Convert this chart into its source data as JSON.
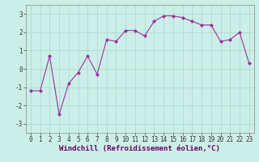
{
  "x": [
    0,
    1,
    2,
    3,
    4,
    5,
    6,
    7,
    8,
    9,
    10,
    11,
    12,
    13,
    14,
    15,
    16,
    17,
    18,
    19,
    20,
    21,
    22,
    23
  ],
  "y": [
    -1.2,
    -1.2,
    0.7,
    -2.5,
    -0.8,
    -0.2,
    0.7,
    -0.3,
    1.6,
    1.5,
    2.1,
    2.1,
    1.8,
    2.6,
    2.9,
    2.9,
    2.8,
    2.6,
    2.4,
    2.4,
    1.5,
    1.6,
    2.0,
    0.3
  ],
  "line_color": "#993399",
  "marker": "D",
  "markersize": 2,
  "linewidth": 0.8,
  "background_color": "#cceee8",
  "grid_color": "#aad4cc",
  "xlabel": "Windchill (Refroidissement éolien,°C)",
  "xlabel_fontsize": 6.5,
  "tick_fontsize": 5.5,
  "ylim": [
    -3.5,
    3.5
  ],
  "xlim": [
    -0.5,
    23.5
  ],
  "yticks": [
    -3,
    -2,
    -1,
    0,
    1,
    2,
    3
  ],
  "xticks": [
    0,
    1,
    2,
    3,
    4,
    5,
    6,
    7,
    8,
    9,
    10,
    11,
    12,
    13,
    14,
    15,
    16,
    17,
    18,
    19,
    20,
    21,
    22,
    23
  ],
  "spine_color": "#888888"
}
